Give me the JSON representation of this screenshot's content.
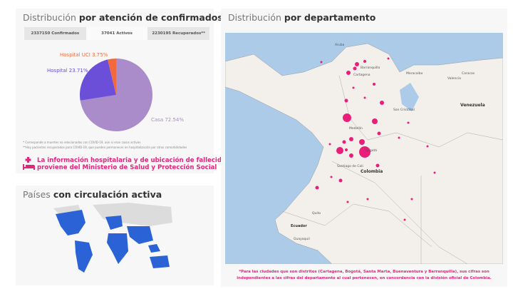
{
  "confirmados_panel": {
    "title_light": "Distribución",
    "title_bold": "por atención de confirmados",
    "tabs": [
      {
        "label": "2337150 Confirmados"
      },
      {
        "label": "37041 Activos",
        "active": true
      },
      {
        "label": "2230195 Recuperados**"
      }
    ],
    "pie": {
      "slices": [
        {
          "label": "Casa 72.54%",
          "value": 72.54,
          "color": "#a98cc9"
        },
        {
          "label": "Hospital 23.71%",
          "value": 23.71,
          "color": "#6b4fd9"
        },
        {
          "label": "Hospital UCI 3.75%",
          "value": 3.75,
          "color": "#f26a3c"
        }
      ]
    },
    "notes": [
      "* Corresponde a muertes no relacionadas con COVID-19, aún si eran casos activos",
      "**Hay pacientes recuperados para COVID-19, que pueden permanecer en hospitalización por otras comorbilidades"
    ],
    "info_line1": "La información hospitalaria y de ubicación de fallecidos",
    "info_line2": "proviene del Ministerio de Salud y Protección Social"
  },
  "paises_panel": {
    "title_light": "Países",
    "title_bold": "con circulación activa",
    "active_color": "#2b63d6"
  },
  "departamento_panel": {
    "title_light": "Distribución",
    "title_bold": "por departamento",
    "dot_color": "#e91e7a",
    "labels": [
      "Aruba",
      "Barranquilla",
      "Cartagena",
      "Maracaibo",
      "Caracas",
      "Valencia",
      "Venezuela",
      "San Cristóbal",
      "Medellín",
      "Bogotá",
      "Santiago de Cali",
      "Colombia",
      "Quito",
      "Ecuador",
      "Guayaquil"
    ],
    "footnote": "*Para las ciudades que son distritos (Cartagena, Bogotá, Santa Marta, Buenaventura y Barranquilla), sus cifras son independientes a las cifras del departamento al cual pertenecen, en concordancia con la división oficial de Colombia."
  }
}
